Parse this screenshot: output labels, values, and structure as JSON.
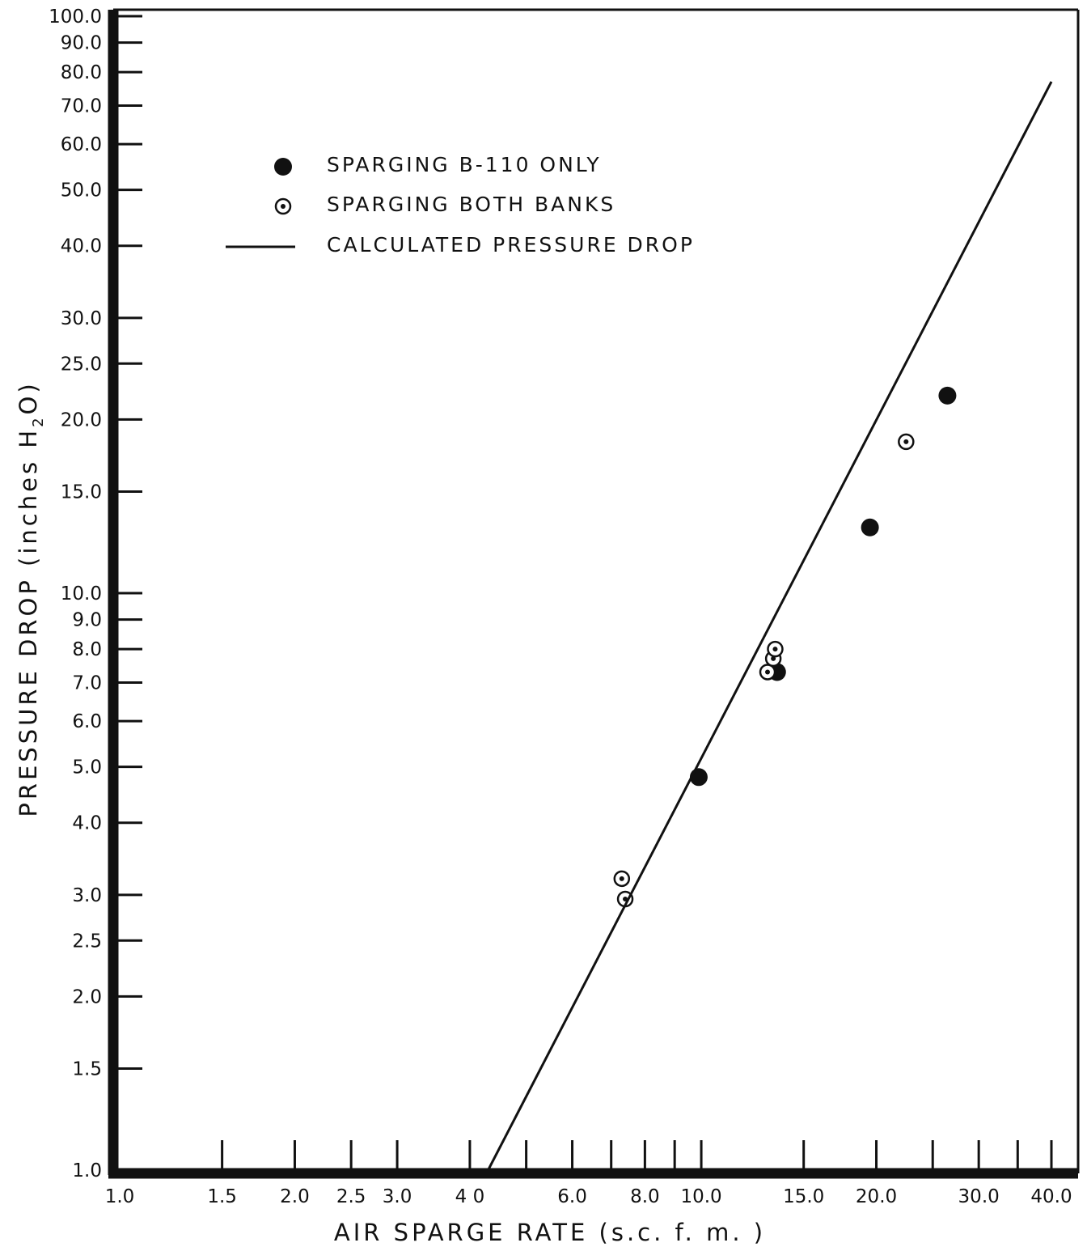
{
  "chart_data": {
    "type": "scatter",
    "xscale": "log",
    "yscale": "log",
    "xlabel": "AIR  SPARGE  RATE  (s.c. f. m. )",
    "ylabel": "PRESSURE  DROP  (inches H",
    "ylabel_sub": "2",
    "ylabel_end": "O)",
    "xlim": [
      1.0,
      40.0
    ],
    "ylim": [
      1.0,
      100.0
    ],
    "x_ticks": [
      1.0,
      1.5,
      2.0,
      2.5,
      3.0,
      4.0,
      5.0,
      6.0,
      7.0,
      8.0,
      9.0,
      10.0,
      15.0,
      20.0,
      25.0,
      30.0,
      35.0,
      40.0
    ],
    "x_tick_labels": [
      {
        "value": 1.0,
        "text": "1.0"
      },
      {
        "value": 1.5,
        "text": "1.5"
      },
      {
        "value": 2.0,
        "text": "2.0"
      },
      {
        "value": 2.5,
        "text": "2.5"
      },
      {
        "value": 3.0,
        "text": "3.0"
      },
      {
        "value": 4.0,
        "text": "4 0"
      },
      {
        "value": 6.0,
        "text": "6.0"
      },
      {
        "value": 8.0,
        "text": "8.0"
      },
      {
        "value": 10.0,
        "text": "10.0"
      },
      {
        "value": 15.0,
        "text": "15.0"
      },
      {
        "value": 20.0,
        "text": "20.0"
      },
      {
        "value": 30.0,
        "text": "30.0"
      },
      {
        "value": 40.0,
        "text": "40.0"
      }
    ],
    "y_ticks": [
      {
        "value": 1.0,
        "text": "1.0"
      },
      {
        "value": 1.5,
        "text": "1.5"
      },
      {
        "value": 2.0,
        "text": "2.0"
      },
      {
        "value": 2.5,
        "text": "2.5"
      },
      {
        "value": 3.0,
        "text": "3.0"
      },
      {
        "value": 4.0,
        "text": "4.0"
      },
      {
        "value": 5.0,
        "text": "5.0"
      },
      {
        "value": 6.0,
        "text": "6.0"
      },
      {
        "value": 7.0,
        "text": "7.0"
      },
      {
        "value": 8.0,
        "text": "8.0"
      },
      {
        "value": 9.0,
        "text": "9.0"
      },
      {
        "value": 10.0,
        "text": "10.0"
      },
      {
        "value": 15.0,
        "text": "15.0"
      },
      {
        "value": 20.0,
        "text": "20.0"
      },
      {
        "value": 25.0,
        "text": "25.0"
      },
      {
        "value": 30.0,
        "text": "30.0"
      },
      {
        "value": 40.0,
        "text": "40.0"
      },
      {
        "value": 50.0,
        "text": "50.0"
      },
      {
        "value": 60.0,
        "text": "60.0"
      },
      {
        "value": 70.0,
        "text": "70.0"
      },
      {
        "value": 80.0,
        "text": "80.0"
      },
      {
        "value": 90.0,
        "text": "90.0"
      },
      {
        "value": 100.0,
        "text": "100.0"
      }
    ],
    "series": [
      {
        "name": "SPARGING  B-110  ONLY",
        "marker": "filled-circle",
        "points": [
          [
            9.9,
            4.8
          ],
          [
            13.5,
            7.3
          ],
          [
            19.5,
            13.0
          ],
          [
            26.5,
            22.0
          ]
        ]
      },
      {
        "name": "SPARGING  BOTH  BANKS",
        "marker": "dotted-circle",
        "points": [
          [
            7.3,
            3.2
          ],
          [
            7.4,
            2.95
          ],
          [
            13.0,
            7.3
          ],
          [
            13.3,
            7.7
          ],
          [
            13.4,
            8.0
          ],
          [
            22.5,
            18.3
          ]
        ]
      },
      {
        "name": "CALCULATED  PRESSURE  DROP",
        "marker": "line",
        "points": [
          [
            4.3,
            1.0
          ],
          [
            40.0,
            77.0
          ]
        ]
      }
    ],
    "legend_position": "top-left",
    "grid": false
  }
}
